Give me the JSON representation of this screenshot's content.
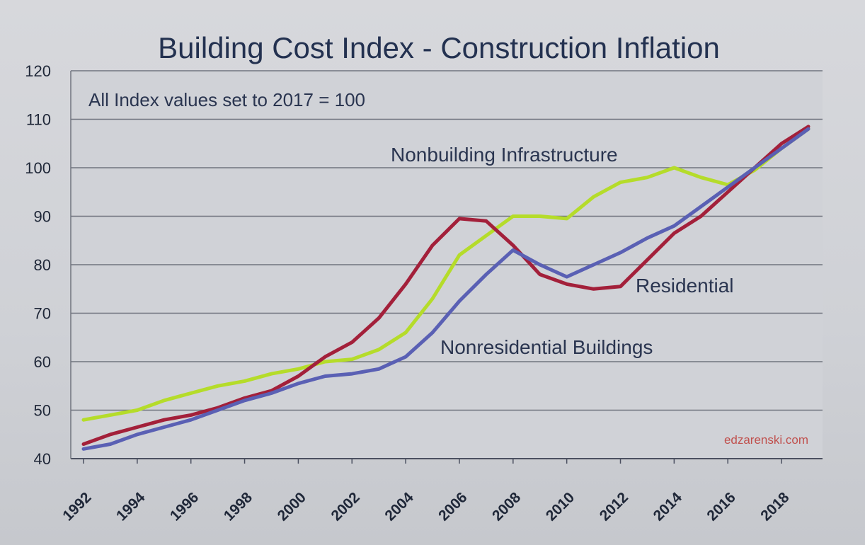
{
  "chart_data": {
    "type": "line",
    "title": "Building Cost Index  - Construction Inflation",
    "subtitle": "All Index values set to 2017 = 100",
    "watermark": "edzarenski.com",
    "ylim": [
      40,
      120
    ],
    "yticks": [
      40,
      50,
      60,
      70,
      80,
      90,
      100,
      110,
      120
    ],
    "xlim": [
      1992,
      2019
    ],
    "xticks": [
      1992,
      1994,
      1996,
      1998,
      2000,
      2002,
      2004,
      2006,
      2008,
      2010,
      2012,
      2014,
      2016,
      2018
    ],
    "grid": "horizontal",
    "x": [
      1992,
      1993,
      1994,
      1995,
      1996,
      1997,
      1998,
      1999,
      2000,
      2001,
      2002,
      2003,
      2004,
      2005,
      2006,
      2007,
      2008,
      2009,
      2010,
      2011,
      2012,
      2013,
      2014,
      2015,
      2016,
      2017,
      2018,
      2019
    ],
    "series": [
      {
        "name": "Nonbuilding Infrastructure",
        "color": "#b5dc2a",
        "values": [
          48,
          49,
          50,
          52,
          53.5,
          55,
          56,
          57.5,
          58.5,
          60,
          60.5,
          62.5,
          66,
          73,
          82,
          86,
          90,
          90,
          89.5,
          94,
          97,
          98,
          100,
          98,
          96.5,
          99.5,
          104,
          108
        ]
      },
      {
        "name": "Residential",
        "color": "#a3203a",
        "values": [
          43,
          45,
          46.5,
          48,
          49,
          50.5,
          52.5,
          54,
          57,
          61,
          64,
          69,
          76,
          84,
          89.5,
          89,
          84,
          78,
          76,
          75,
          75.5,
          81,
          86.5,
          90,
          95,
          100,
          105,
          108.5
        ]
      },
      {
        "name": "Nonresidential Buildings",
        "color": "#5a60b4",
        "values": [
          42,
          43,
          45,
          46.5,
          48,
          50,
          52,
          53.5,
          55.5,
          57,
          57.5,
          58.5,
          61,
          66,
          72.5,
          78,
          83,
          80,
          77.5,
          80,
          82.5,
          85.5,
          88,
          92,
          96,
          100,
          104,
          108
        ]
      }
    ],
    "annotations": [
      {
        "text": "Nonbuilding Infrastructure"
      },
      {
        "text": "Residential"
      },
      {
        "text": "Nonresidential Buildings"
      }
    ]
  }
}
